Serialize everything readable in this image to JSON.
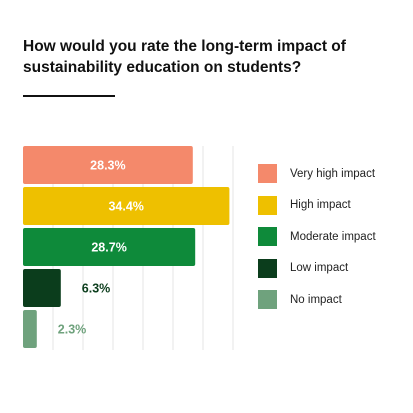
{
  "chart_data": {
    "type": "bar",
    "orientation": "horizontal",
    "title": "How would you rate the long-term impact of sustainability education on students?",
    "categories": [
      "Very high impact",
      "High impact",
      "Moderate impact",
      "Low impact",
      "No impact"
    ],
    "values": [
      28.3,
      34.4,
      28.7,
      6.3,
      2.3
    ],
    "value_labels": [
      "28.3%",
      "34.4%",
      "28.7%",
      "6.3%",
      "2.3%"
    ],
    "colors": [
      "#F4896B",
      "#EEC000",
      "#0E8A3A",
      "#0B3D1C",
      "#6FA27D"
    ],
    "xlim": [
      0,
      40
    ],
    "grid": true,
    "legend_position": "right"
  }
}
